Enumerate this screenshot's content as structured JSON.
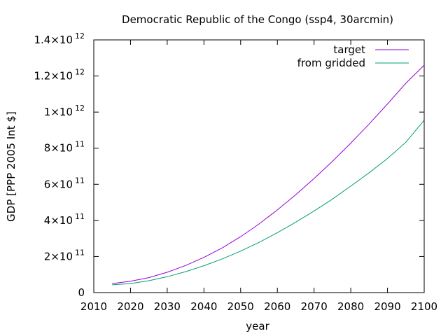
{
  "chart_data": {
    "type": "line",
    "title": "Democratic Republic of the Congo (ssp4, 30arcmin)",
    "xlabel": "year",
    "ylabel": "GDP [PPP 2005 Int $]",
    "xlim": [
      2010,
      2100
    ],
    "ylim": [
      0,
      1400000000000.0
    ],
    "x_ticks": [
      2010,
      2020,
      2030,
      2040,
      2050,
      2060,
      2070,
      2080,
      2090,
      2100
    ],
    "y_ticks": [
      {
        "value": 0,
        "mantissa": "0",
        "exponent": ""
      },
      {
        "value": 200000000000.0,
        "mantissa": "2×10",
        "exponent": "11"
      },
      {
        "value": 400000000000.0,
        "mantissa": "4×10",
        "exponent": "11"
      },
      {
        "value": 600000000000.0,
        "mantissa": "6×10",
        "exponent": "11"
      },
      {
        "value": 800000000000.0,
        "mantissa": "8×10",
        "exponent": "11"
      },
      {
        "value": 1000000000000.0,
        "mantissa": "1×10",
        "exponent": "12"
      },
      {
        "value": 1200000000000.0,
        "mantissa": "1.2×10",
        "exponent": "12"
      },
      {
        "value": 1400000000000.0,
        "mantissa": "1.4×10",
        "exponent": "12"
      }
    ],
    "legend_position": "top-right",
    "grid": false,
    "x": [
      2015,
      2020,
      2025,
      2030,
      2035,
      2040,
      2045,
      2050,
      2055,
      2060,
      2065,
      2070,
      2075,
      2080,
      2085,
      2090,
      2095,
      2100
    ],
    "series": [
      {
        "name": "target",
        "color": "#9400d3",
        "values": [
          50000000000.0,
          63000000000.0,
          83000000000.0,
          113000000000.0,
          150000000000.0,
          195000000000.0,
          248000000000.0,
          310000000000.0,
          380000000000.0,
          458000000000.0,
          542000000000.0,
          632000000000.0,
          727000000000.0,
          828000000000.0,
          934000000000.0,
          1045000000000.0,
          1160000000000.0,
          1260000000000.0
        ]
      },
      {
        "name": "from gridded",
        "color": "#009e73",
        "values": [
          43000000000.0,
          50000000000.0,
          66000000000.0,
          88000000000.0,
          116000000000.0,
          149000000000.0,
          187000000000.0,
          230000000000.0,
          278000000000.0,
          332000000000.0,
          390000000000.0,
          452000000000.0,
          518000000000.0,
          590000000000.0,
          664000000000.0,
          743000000000.0,
          833000000000.0,
          955000000000.0
        ]
      }
    ]
  }
}
